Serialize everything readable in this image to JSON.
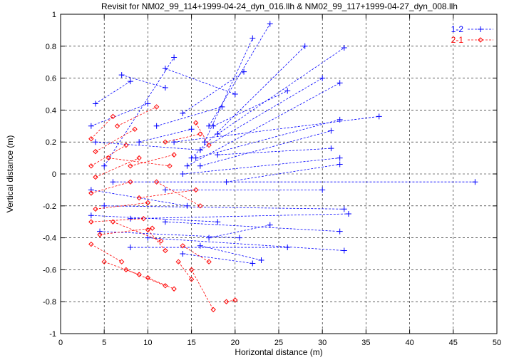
{
  "chart_data": {
    "type": "scatter",
    "title": "Revisit for NM02_99_114+1999-04-24_dyn_016.llh & NM02_99_117+1999-04-27_dyn_008.llh",
    "xlabel": "Horizontal distance (m)",
    "ylabel": "Vertical distance (m)",
    "xlim": [
      0,
      50
    ],
    "ylim": [
      -1,
      1
    ],
    "xticks": [
      "0",
      "5",
      "10",
      "15",
      "20",
      "25",
      "30",
      "35",
      "40",
      "45",
      "50"
    ],
    "yticks": [
      "-1",
      "-0.8",
      "-0.6",
      "-0.4",
      "-0.2",
      "0",
      "0.2",
      "0.4",
      "0.6",
      "0.8",
      "1"
    ],
    "grid": "dashed",
    "legend_position": "top-right",
    "series": [
      {
        "name": "1-2",
        "color": "#0000ff",
        "marker": "plus",
        "line": "dashed",
        "points": [
          [
            4.0,
            0.44
          ],
          [
            8.0,
            0.58
          ],
          [
            14.0,
            0.38
          ],
          [
            21.0,
            0.64
          ],
          [
            17.0,
            0.3
          ],
          [
            24.0,
            0.94
          ],
          [
            16.5,
            0.2
          ],
          [
            22.0,
            0.85
          ],
          [
            15.0,
            0.1
          ],
          [
            28.0,
            0.8
          ],
          [
            18.0,
            0.25
          ],
          [
            32.5,
            0.79
          ],
          [
            16.0,
            0.15
          ],
          [
            30.0,
            0.6
          ],
          [
            14.5,
            0.05
          ],
          [
            32.0,
            0.57
          ],
          [
            17.5,
            0.3
          ],
          [
            26.0,
            0.52
          ],
          [
            13.0,
            0.2
          ],
          [
            36.5,
            0.36
          ],
          [
            15.5,
            0.1
          ],
          [
            32.0,
            0.34
          ],
          [
            16.0,
            0.05
          ],
          [
            31.0,
            0.27
          ],
          [
            18.0,
            0.12
          ],
          [
            31.0,
            0.16
          ],
          [
            14.0,
            0.0
          ],
          [
            32.0,
            0.1
          ],
          [
            19.0,
            -0.05
          ],
          [
            32.0,
            0.06
          ],
          [
            6.0,
            -0.05
          ],
          [
            47.5,
            -0.05
          ],
          [
            12.0,
            -0.1
          ],
          [
            30.0,
            -0.1
          ],
          [
            5.0,
            -0.2
          ],
          [
            32.5,
            -0.22
          ],
          [
            8.0,
            -0.28
          ],
          [
            33.0,
            -0.25
          ],
          [
            12.0,
            -0.3
          ],
          [
            32.0,
            -0.36
          ],
          [
            10.0,
            -0.4
          ],
          [
            32.5,
            -0.48
          ],
          [
            8.0,
            -0.46
          ],
          [
            26.0,
            -0.46
          ],
          [
            14.0,
            -0.5
          ],
          [
            22.0,
            -0.56
          ],
          [
            16.0,
            -0.45
          ],
          [
            23.0,
            -0.54
          ],
          [
            5.0,
            0.05
          ],
          [
            13.0,
            0.73
          ],
          [
            7.0,
            0.62
          ],
          [
            12.0,
            0.54
          ],
          [
            3.5,
            0.3
          ],
          [
            10.0,
            0.44
          ],
          [
            4.0,
            0.2
          ],
          [
            16.0,
            0.15
          ],
          [
            3.5,
            -0.1
          ],
          [
            14.5,
            -0.2
          ],
          [
            3.5,
            -0.26
          ],
          [
            18.0,
            -0.3
          ],
          [
            4.5,
            -0.36
          ],
          [
            20.5,
            -0.4
          ],
          [
            9.0,
            0.2
          ],
          [
            15.0,
            0.28
          ],
          [
            11.0,
            0.3
          ],
          [
            18.5,
            0.42
          ],
          [
            12.0,
            0.66
          ],
          [
            20.0,
            0.5
          ],
          [
            17.0,
            -0.4
          ],
          [
            24.0,
            -0.32
          ]
        ]
      },
      {
        "name": "2-1",
        "color": "#ff0000",
        "marker": "diamond",
        "line": "dashed",
        "points": [
          [
            3.5,
            0.22
          ],
          [
            6.0,
            0.36
          ],
          [
            4.0,
            0.14
          ],
          [
            8.5,
            0.28
          ],
          [
            3.5,
            0.05
          ],
          [
            7.5,
            0.18
          ],
          [
            4.0,
            -0.02
          ],
          [
            9.0,
            0.1
          ],
          [
            3.5,
            -0.12
          ],
          [
            8.0,
            -0.05
          ],
          [
            4.0,
            -0.22
          ],
          [
            10.0,
            -0.18
          ],
          [
            3.5,
            -0.3
          ],
          [
            9.5,
            -0.28
          ],
          [
            4.5,
            -0.38
          ],
          [
            10.5,
            -0.34
          ],
          [
            3.5,
            -0.44
          ],
          [
            7.0,
            -0.55
          ],
          [
            5.0,
            -0.55
          ],
          [
            9.0,
            -0.63
          ],
          [
            7.5,
            -0.6
          ],
          [
            12.0,
            -0.7
          ],
          [
            10.0,
            -0.65
          ],
          [
            13.0,
            -0.72
          ],
          [
            15.0,
            -0.6
          ],
          [
            17.5,
            -0.85
          ],
          [
            19.0,
            -0.8
          ],
          [
            20.0,
            -0.79
          ],
          [
            17.0,
            -0.55
          ],
          [
            14.0,
            -0.45
          ],
          [
            10.0,
            -0.35
          ],
          [
            12.0,
            -0.48
          ],
          [
            8.0,
            0.05
          ],
          [
            13.0,
            0.12
          ],
          [
            6.5,
            0.3
          ],
          [
            11.0,
            0.42
          ],
          [
            12.0,
            0.2
          ],
          [
            16.0,
            0.25
          ],
          [
            9.0,
            -0.15
          ],
          [
            15.5,
            -0.1
          ],
          [
            11.0,
            -0.05
          ],
          [
            16.0,
            -0.2
          ],
          [
            5.5,
            0.1
          ],
          [
            12.5,
            0.05
          ],
          [
            6.0,
            -0.3
          ],
          [
            11.5,
            -0.42
          ],
          [
            13.5,
            -0.55
          ],
          [
            15.0,
            -0.66
          ],
          [
            15.5,
            0.32
          ],
          [
            17.0,
            0.18
          ]
        ]
      }
    ]
  }
}
